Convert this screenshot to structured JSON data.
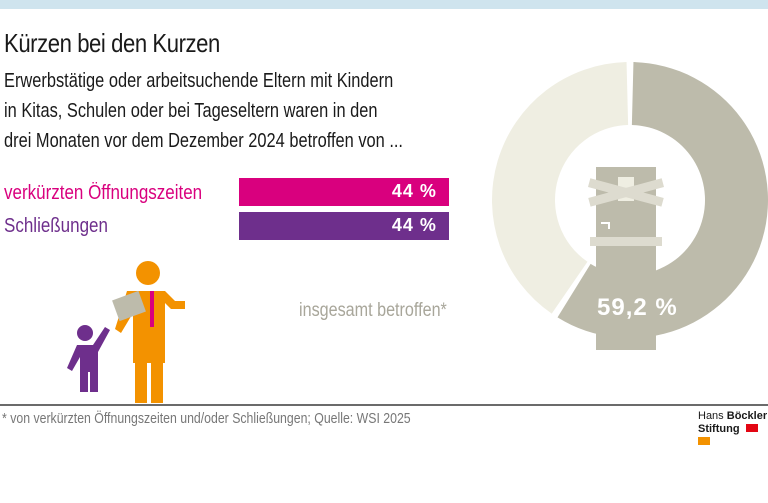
{
  "title": "Kürzen bei den Kurzen",
  "subtitle_lines": [
    "Erwerbstätige oder arbeitsuchende Eltern mit Kindern",
    "in Kitas, Schulen oder bei Tageseltern waren in den",
    "drei Monaten vor dem Dezember 2024 betroffen von ..."
  ],
  "chart_data": [
    {
      "type": "bar",
      "orientation": "horizontal",
      "categories": [
        "verkürzten Öffnungszeiten",
        "Schließungen"
      ],
      "values": [
        44,
        44
      ],
      "data_labels": [
        "44 %",
        "44 %"
      ],
      "colors": [
        "#d9007e",
        "#6e2f8c"
      ],
      "unit": "%"
    },
    {
      "type": "pie",
      "style": "donut",
      "label": "insgesamt betroffen*",
      "values": [
        59.2,
        40.8
      ],
      "data_label": "59,2 %",
      "colors": [
        "#bdbbab",
        "#efeee2"
      ]
    }
  ],
  "footnote": "* von verkürzten Öffnungszeiten und/oder Schließungen; Quelle: WSI 2025",
  "logo": {
    "line1a": "Hans",
    "line1b": "Böckler",
    "line2": "Stiftung",
    "colors": [
      "#e30613",
      "#f39200"
    ]
  },
  "icons": [
    "parent-with-child-illustration",
    "boarded-door-illustration"
  ]
}
